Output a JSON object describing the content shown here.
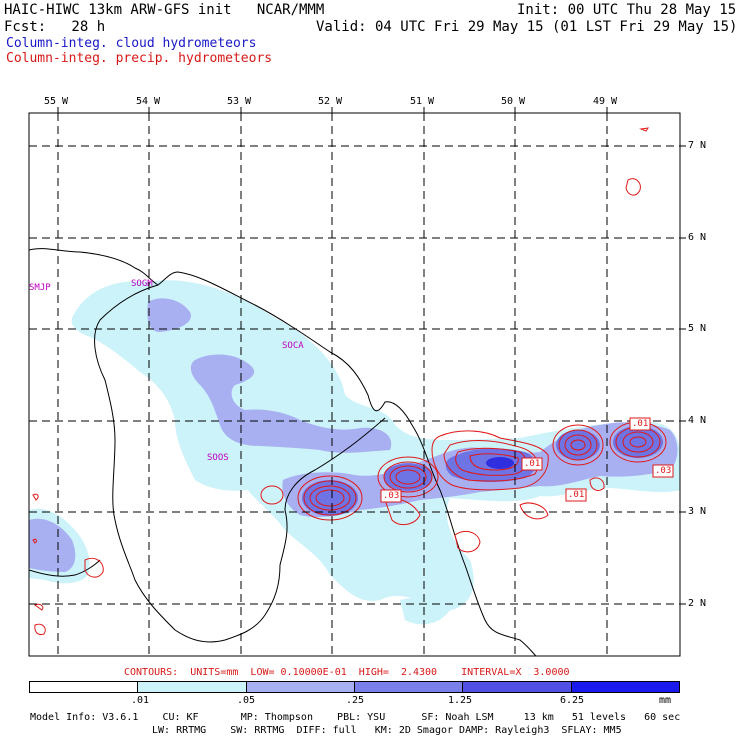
{
  "header": {
    "title_left": "HAIC-HIWC 13km ARW-GFS init   NCAR/MMM",
    "fcst_label": "Fcst:   28 h",
    "init": "Init: 00 UTC Thu 28 May 15",
    "valid": "Valid: 04 UTC Fri 29 May 15 (01 LST Fri 29 May 15)"
  },
  "legend": {
    "cloud": "Column-integ. cloud hydrometeors",
    "precip": "Column-integ. precip. hydrometeors"
  },
  "map": {
    "lon_labels": [
      "55 W",
      "54 W",
      "53 W",
      "52 W",
      "51 W",
      "50 W",
      "49 W"
    ],
    "lat_labels": [
      "7 N",
      "6 N",
      "5 N",
      "4 N",
      "3 N",
      "2 N"
    ],
    "stations": [
      "SMJP",
      "SOGM",
      "SOCA",
      "SOOS"
    ],
    "contour_labels": [
      ".01",
      ".01",
      ".03",
      ".03",
      ".01"
    ],
    "colors": {
      "fill_light": "#ccf2fa",
      "fill_mid": "#a8b0f2",
      "fill_dark": "#6e74e4",
      "fill_core": "#2f2fe0",
      "contour": "#e01818",
      "station": "#c000c0"
    }
  },
  "contours_line": "CONTOURS:  UNITS=mm  LOW= 0.10000E-01  HIGH=  2.4300    INTERVAL=X  3.0000",
  "colorbar": {
    "ticks": [
      ".01",
      ".05",
      ".25",
      "1.25",
      "6.25"
    ],
    "unit": "mm",
    "colors": [
      "#ffffff",
      "#ccf2fa",
      "#a8b0f2",
      "#7a80ea",
      "#5050e4",
      "#1a1aee"
    ]
  },
  "model_info": {
    "line1": "Model Info: V3.6.1    CU: KF       MP: Thompson    PBL: YSU      SF: Noah LSM     13 km   51 levels   60 sec",
    "line2": "LW: RRTMG    SW: RRTMG  DIFF: full   KM: 2D Smagor DAMP: Rayleigh3  SFLAY: MM5"
  }
}
